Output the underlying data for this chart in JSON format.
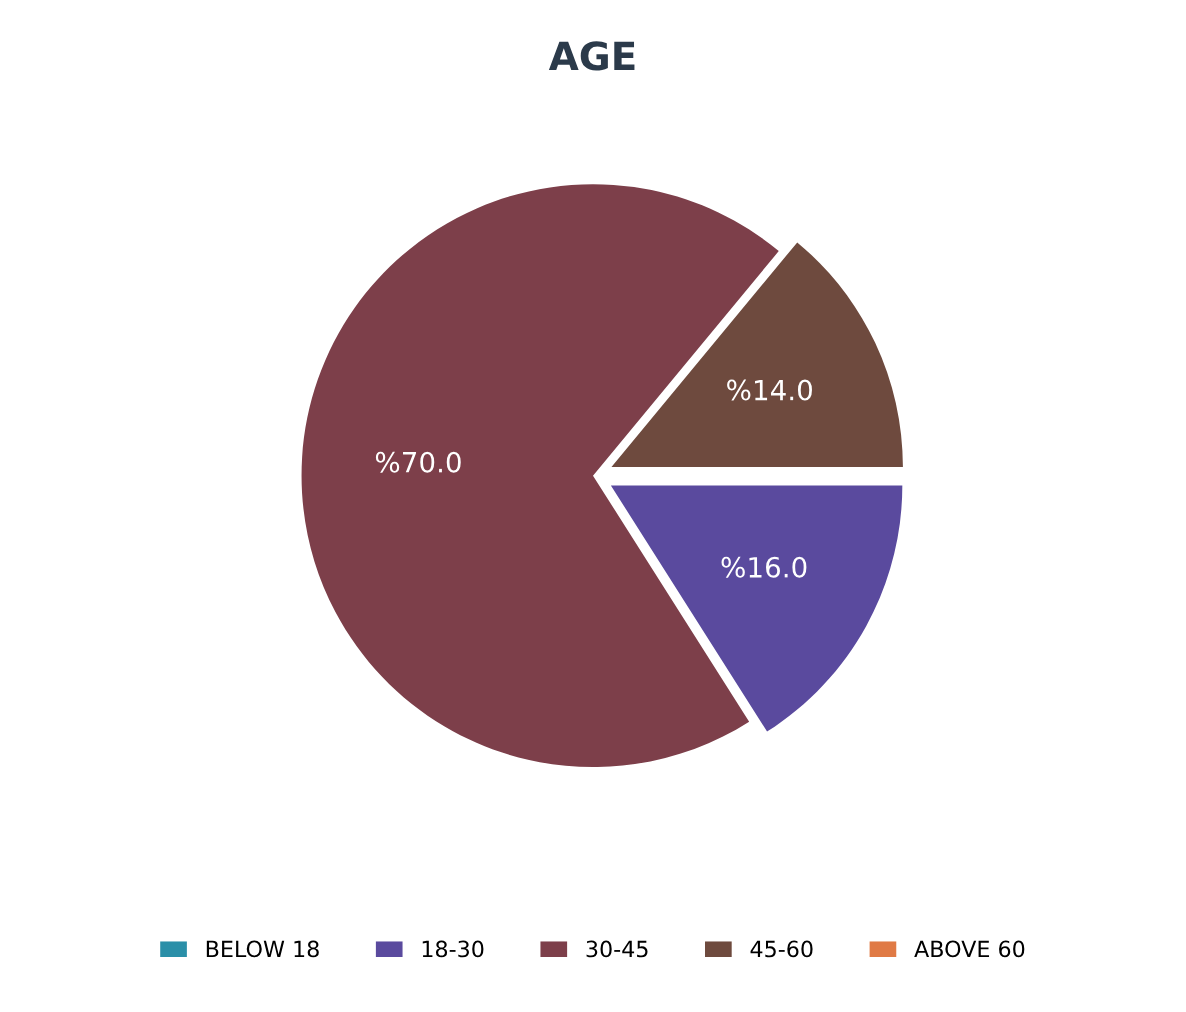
{
  "chart_data": {
    "type": "pie",
    "title": "AGE",
    "categories": [
      "BELOW 18",
      "18-30",
      "30-45",
      "45-60",
      "ABOVE 60"
    ],
    "values": [
      0,
      16,
      70,
      14,
      0
    ],
    "value_labels": [
      null,
      "%16.0",
      "%70.0",
      "%14.0",
      null
    ],
    "colors": [
      "#2a8fa8",
      "#5a4a9e",
      "#7d3f4a",
      "#6e4a3e",
      "#e07a45"
    ],
    "legend": "bottom"
  }
}
